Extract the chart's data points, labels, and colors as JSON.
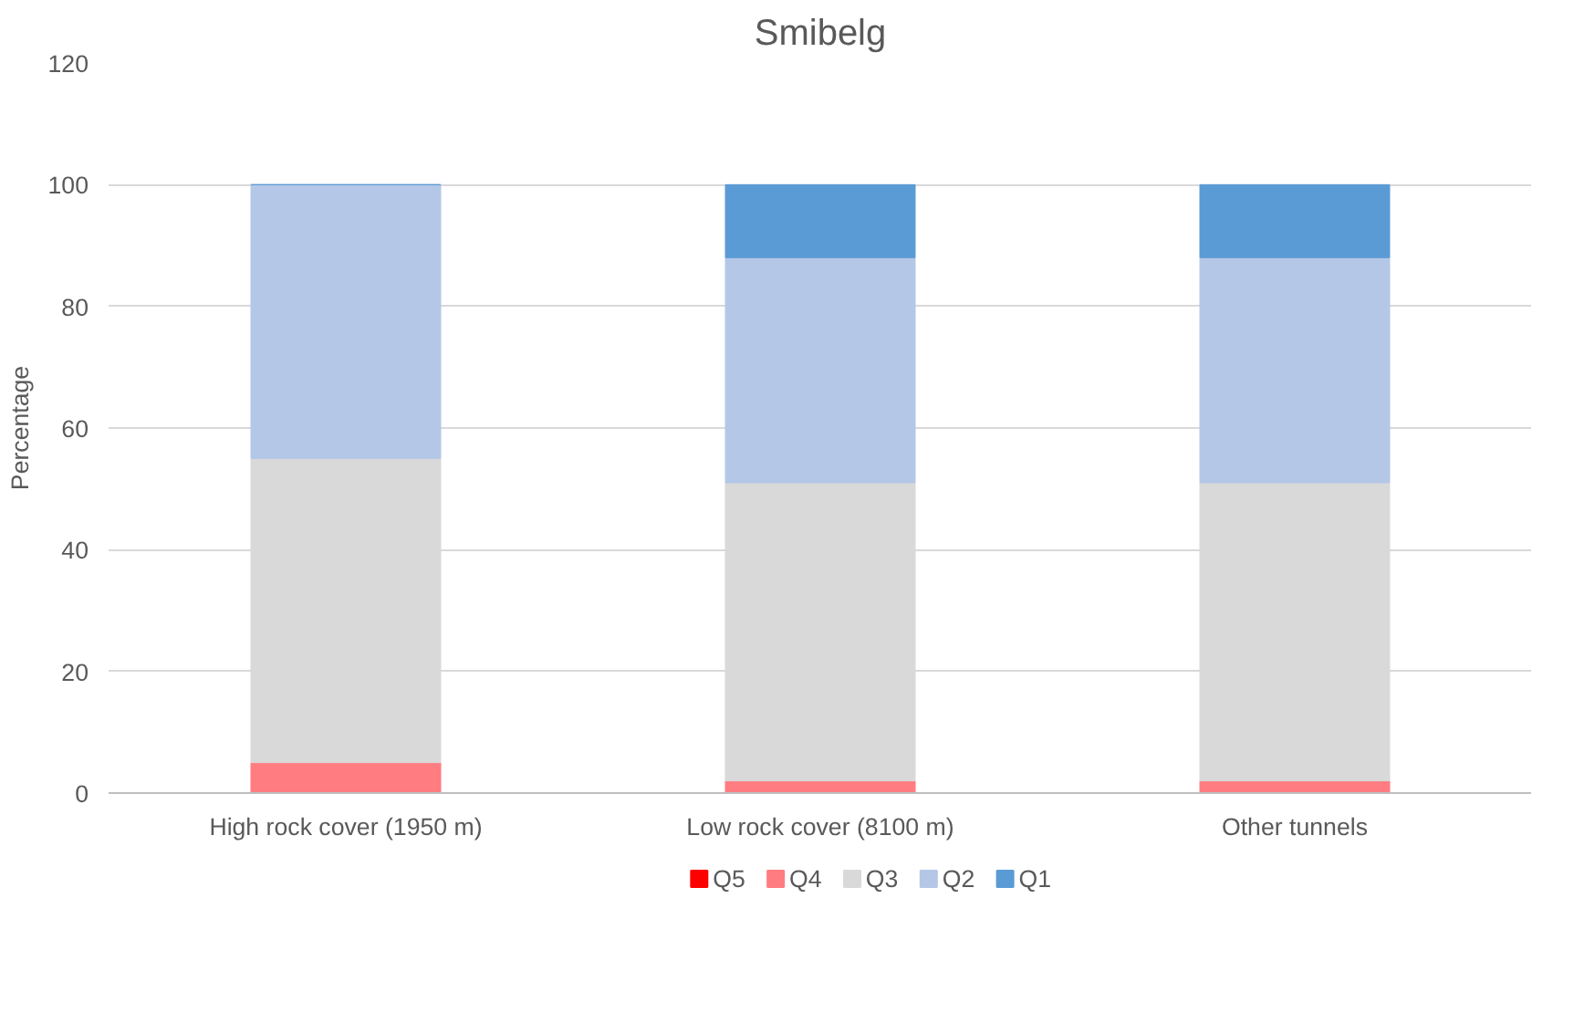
{
  "chart_data": {
    "type": "bar",
    "title": "Smibelg",
    "ylabel": "Percentage",
    "stacked": true,
    "categories": [
      "High rock cover (1950 m)",
      "Low rock cover (8100 m)",
      "Other tunnels"
    ],
    "series": [
      {
        "name": "Q5",
        "color": "#ff0000",
        "values": [
          0,
          0,
          0
        ]
      },
      {
        "name": "Q4",
        "color": "#ff7c80",
        "values": [
          5,
          2,
          2
        ]
      },
      {
        "name": "Q3",
        "color": "#d9d9d9",
        "values": [
          50,
          49,
          49
        ]
      },
      {
        "name": "Q2",
        "color": "#b4c7e7",
        "values": [
          45,
          37,
          37
        ]
      },
      {
        "name": "Q1",
        "color": "#5b9bd5",
        "values": [
          0,
          12,
          12
        ]
      }
    ],
    "ylim": [
      0,
      120
    ],
    "yticks": [
      0,
      20,
      40,
      60,
      80,
      100,
      120
    ],
    "grid": "y",
    "legend": "bottom"
  }
}
